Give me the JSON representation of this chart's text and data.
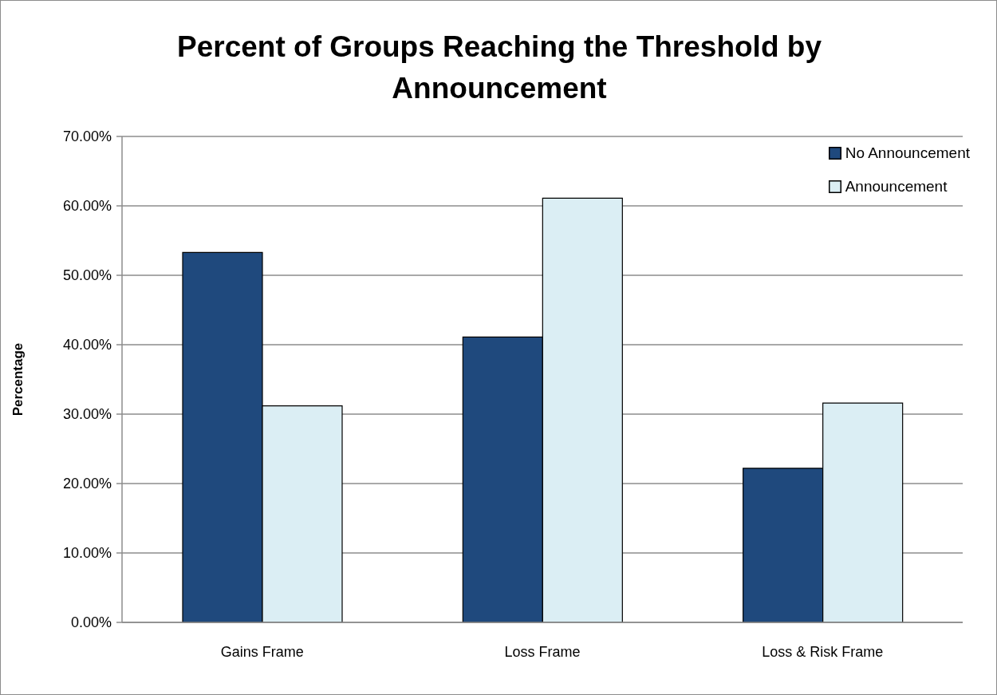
{
  "chart_data": {
    "type": "bar",
    "title": "Percent of Groups Reaching the Threshold by Announcement",
    "ylabel": "Percentage",
    "categories": [
      "Gains Frame",
      "Loss Frame",
      "Loss & Risk Frame"
    ],
    "series": [
      {
        "name": "No Announcement",
        "color": "#1f497d",
        "values": [
          53.3,
          41.1,
          22.2
        ]
      },
      {
        "name": "Announcement",
        "color": "#dbeef4",
        "values": [
          31.2,
          61.1,
          31.6
        ]
      }
    ],
    "ylim": [
      0,
      70
    ],
    "yticks": [
      {
        "value": 0,
        "label": "0.00%"
      },
      {
        "value": 10,
        "label": "10.00%"
      },
      {
        "value": 20,
        "label": "20.00%"
      },
      {
        "value": 30,
        "label": "30.00%"
      },
      {
        "value": 40,
        "label": "40.00%"
      },
      {
        "value": 50,
        "label": "50.00%"
      },
      {
        "value": 60,
        "label": "60.00%"
      },
      {
        "value": 70,
        "label": "70.00%"
      }
    ],
    "grid": "y",
    "legend": "top right"
  }
}
